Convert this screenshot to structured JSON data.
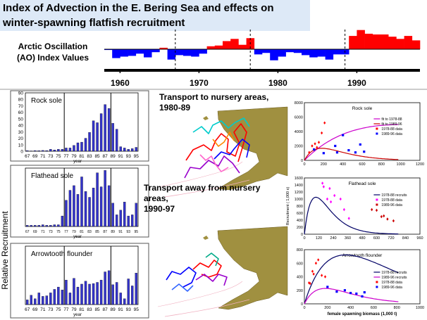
{
  "title": {
    "line1": "Index of Advection in the E. Bering Sea and effects on",
    "line2": "winter-spawning flatfish recruitment"
  },
  "colors": {
    "ao_positive": "#ff0000",
    "ao_negative": "#0000ff",
    "recruit_bar": "#3333cc",
    "land": "#a09040",
    "title_bg": "#dde9f7"
  },
  "chart_data": [
    {
      "type": "bar",
      "label": "Arctic Oscillation (AO) Index Values",
      "label_lines": [
        "Arctic Oscillation",
        "(AO) Index Values"
      ],
      "x_ticks": [
        "1960",
        "1970",
        "1980",
        "1990"
      ],
      "x": [
        1958,
        1959,
        1960,
        1961,
        1962,
        1963,
        1964,
        1965,
        1966,
        1967,
        1968,
        1969,
        1970,
        1971,
        1972,
        1973,
        1974,
        1975,
        1976,
        1977,
        1978,
        1979,
        1980,
        1981,
        1982,
        1983,
        1984,
        1985,
        1986,
        1987,
        1988,
        1989,
        1990,
        1991,
        1992,
        1993,
        1994,
        1995,
        1996,
        1997
      ],
      "values": [
        -0.1,
        -1.2,
        -1.0,
        -0.9,
        -0.6,
        -1.1,
        -0.4,
        0.2,
        -1.4,
        -0.8,
        -0.9,
        -1.0,
        -0.6,
        0.4,
        0.5,
        1.1,
        1.4,
        0.6,
        1.5,
        -0.7,
        -0.5,
        -1.5,
        -1.0,
        -0.4,
        -0.5,
        -0.8,
        -1.1,
        -1.0,
        -1.4,
        -0.7,
        -0.7,
        1.8,
        2.6,
        2.1,
        2.0,
        2.0,
        1.7,
        1.4,
        1.8,
        1.2
      ],
      "dashed_lines": [
        1967,
        1976.5,
        1988.5
      ]
    },
    {
      "type": "bar",
      "title": "Rock sole",
      "x_ticks": [
        "67",
        "69",
        "71",
        "73",
        "75",
        "77",
        "79",
        "81",
        "83",
        "85",
        "87",
        "89",
        "91",
        "93",
        "95"
      ],
      "x_label": "year",
      "y_ticks": [
        "0",
        "10",
        "20",
        "30",
        "40",
        "50",
        "60",
        "70",
        "80",
        "90"
      ],
      "ylim": [
        0,
        90
      ],
      "x": [
        1967,
        1968,
        1969,
        1970,
        1971,
        1972,
        1973,
        1974,
        1975,
        1976,
        1977,
        1978,
        1979,
        1980,
        1981,
        1982,
        1983,
        1984,
        1985,
        1986,
        1987,
        1988,
        1989,
        1990,
        1991,
        1992,
        1993,
        1994,
        1995
      ],
      "values": [
        1,
        0.5,
        1,
        0.8,
        1.2,
        1,
        3,
        2,
        3,
        3,
        5,
        5,
        9,
        13,
        14,
        20,
        29,
        47,
        44,
        58,
        72,
        66,
        43,
        34,
        7,
        5,
        3,
        4,
        6
      ],
      "dividers": [
        1976.5,
        1988.5
      ]
    },
    {
      "type": "bar",
      "title": "Flathead sole",
      "x_ticks": [
        "67",
        "69",
        "71",
        "73",
        "75",
        "77",
        "79",
        "81",
        "83",
        "85",
        "87",
        "89",
        "91",
        "93",
        "95"
      ],
      "x_label": "year",
      "ylim": [
        0,
        100
      ],
      "x": [
        1967,
        1968,
        1969,
        1970,
        1971,
        1972,
        1973,
        1974,
        1975,
        1976,
        1977,
        1978,
        1979,
        1980,
        1981,
        1982,
        1983,
        1984,
        1985,
        1986,
        1987,
        1988,
        1989,
        1990,
        1991,
        1992,
        1993,
        1994,
        1995
      ],
      "values": [
        2,
        2,
        2,
        2,
        3,
        2,
        2,
        3,
        3,
        18,
        45,
        62,
        70,
        55,
        85,
        60,
        50,
        66,
        92,
        68,
        96,
        70,
        40,
        20,
        28,
        42,
        18,
        20,
        40
      ],
      "dividers": [
        1976.5,
        1988.5
      ]
    },
    {
      "type": "bar",
      "title": "Arrowtooth flounder",
      "x_ticks": [
        "67",
        "69",
        "71",
        "73",
        "75",
        "77",
        "79",
        "81",
        "83",
        "85",
        "87",
        "89",
        "91",
        "93",
        "95"
      ],
      "x_label": "year",
      "ylim": [
        0,
        100
      ],
      "x": [
        1967,
        1968,
        1969,
        1970,
        1971,
        1972,
        1973,
        1974,
        1975,
        1976,
        1977,
        1978,
        1979,
        1980,
        1981,
        1982,
        1983,
        1984,
        1985,
        1986,
        1987,
        1988,
        1989,
        1990,
        1991,
        1992,
        1993,
        1994,
        1995
      ],
      "values": [
        8,
        16,
        10,
        20,
        14,
        15,
        20,
        26,
        30,
        25,
        42,
        20,
        45,
        30,
        35,
        40,
        35,
        36,
        38,
        42,
        56,
        58,
        34,
        38,
        20,
        10,
        44,
        32,
        54
      ],
      "dividers": [
        1976.5,
        1988.5
      ]
    },
    {
      "type": "scatter",
      "title": "Rock sole",
      "xlim": [
        0,
        1200
      ],
      "ylim": [
        0,
        8000
      ],
      "x_ticks": [
        "0",
        "200",
        "400",
        "600",
        "800",
        "1000",
        "1200"
      ],
      "y_ticks": [
        "0",
        "2000",
        "4000",
        "6000",
        "8000"
      ],
      "legend": [
        "fit to 1978-88",
        "fit to 1989-96",
        "1978-88 data",
        "1989-96 data"
      ],
      "series": [
        {
          "name": "fit to 1978-88",
          "kind": "curve",
          "color": "#cc00cc",
          "a": 13.5,
          "b": 0.001
        },
        {
          "name": "fit to 1989-96",
          "kind": "curve",
          "color": "#cc0000",
          "a": 25,
          "b": 0.0055
        },
        {
          "name": "1978-88 data",
          "kind": "points",
          "color": "#ff0000",
          "points": [
            [
              50,
              1100
            ],
            [
              80,
              2000
            ],
            [
              100,
              1500
            ],
            [
              110,
              2300
            ],
            [
              130,
              1800
            ],
            [
              150,
              2500
            ],
            [
              180,
              3800
            ],
            [
              210,
              5200
            ]
          ]
        },
        {
          "name": "1989-96 data",
          "kind": "points",
          "color": "#0000ff",
          "points": [
            [
              100,
              1500
            ],
            [
              200,
              1000
            ],
            [
              320,
              2000
            ],
            [
              340,
              1100
            ],
            [
              400,
              3500
            ],
            [
              460,
              1400
            ],
            [
              530,
              1100
            ],
            [
              580,
              2200
            ],
            [
              620,
              1200
            ]
          ]
        }
      ]
    },
    {
      "type": "scatter",
      "title": "Flathead sole",
      "ylabel": "Recruitment ( 1,000 s)",
      "xlim": [
        0,
        960
      ],
      "ylim": [
        0,
        1600
      ],
      "x_ticks": [
        "0",
        "120",
        "240",
        "360",
        "480",
        "600",
        "720",
        "840",
        "960"
      ],
      "y_ticks": [
        "0",
        "200",
        "400",
        "600",
        "800",
        "1000",
        "1200",
        "1400",
        "1600"
      ],
      "legend": [
        "1978-88 recruits",
        "1978-88 data",
        "1989-96 data"
      ],
      "series": [
        {
          "name": "1978-88 recruits",
          "kind": "curve",
          "color": "#000066",
          "a": 30,
          "b": 0.0105
        },
        {
          "name": "1978-88 data",
          "kind": "points",
          "color": "#ff00ff",
          "points": [
            [
              150,
              1450
            ],
            [
              160,
              1350
            ],
            [
              190,
              1000
            ],
            [
              210,
              1300
            ],
            [
              220,
              920
            ],
            [
              250,
              1100
            ],
            [
              300,
              1000
            ],
            [
              330,
              700
            ],
            [
              370,
              450
            ]
          ]
        },
        {
          "name": "1989-96 data",
          "kind": "points",
          "color": "#cc0000",
          "points": [
            [
              560,
              700
            ],
            [
              600,
              680
            ],
            [
              640,
              500
            ],
            [
              660,
              520
            ],
            [
              690,
              430
            ],
            [
              740,
              380
            ]
          ]
        }
      ]
    },
    {
      "type": "scatter",
      "title": "Arrowtooth flounder",
      "xlabel": "female spawning biomass (1,000 t)",
      "xlim": [
        0,
        1000
      ],
      "ylim": [
        0,
        800
      ],
      "x_ticks": [
        "0",
        "200",
        "400",
        "600",
        "800",
        "1000"
      ],
      "y_ticks": [
        "0",
        "200",
        "400",
        "600",
        "800"
      ],
      "legend": [
        "1978-88 recruits",
        "1989-96 recruits",
        "1978-88 data",
        "1989-96 data"
      ],
      "series": [
        {
          "name": "1978-88 recruits",
          "kind": "curve",
          "color": "#000066",
          "a": 5.5,
          "b": 0.0028
        },
        {
          "name": "1989-96 recruits",
          "kind": "curve",
          "color": "#cc00cc",
          "a": 3.4,
          "b": 0.0055
        },
        {
          "name": "1978-88 data",
          "kind": "points",
          "color": "#ff0000",
          "points": [
            [
              40,
              310
            ],
            [
              50,
              300
            ],
            [
              70,
              480
            ],
            [
              80,
              440
            ],
            [
              100,
              600
            ],
            [
              120,
              650
            ],
            [
              150,
              420
            ],
            [
              180,
              400
            ]
          ]
        },
        {
          "name": "1989-96 data",
          "kind": "points",
          "color": "#0000ff",
          "points": [
            [
              200,
              250
            ],
            [
              280,
              180
            ],
            [
              350,
              200
            ],
            [
              400,
              160
            ],
            [
              450,
              150
            ],
            [
              500,
              110
            ],
            [
              520,
              170
            ]
          ]
        }
      ]
    }
  ],
  "side_label": "Relative Recruitment",
  "maps": {
    "top_caption": [
      "Transport to nursery areas,",
      "1980-89"
    ],
    "bottom_caption": [
      "Transport away from nursery",
      "areas,",
      "1990-97"
    ]
  }
}
